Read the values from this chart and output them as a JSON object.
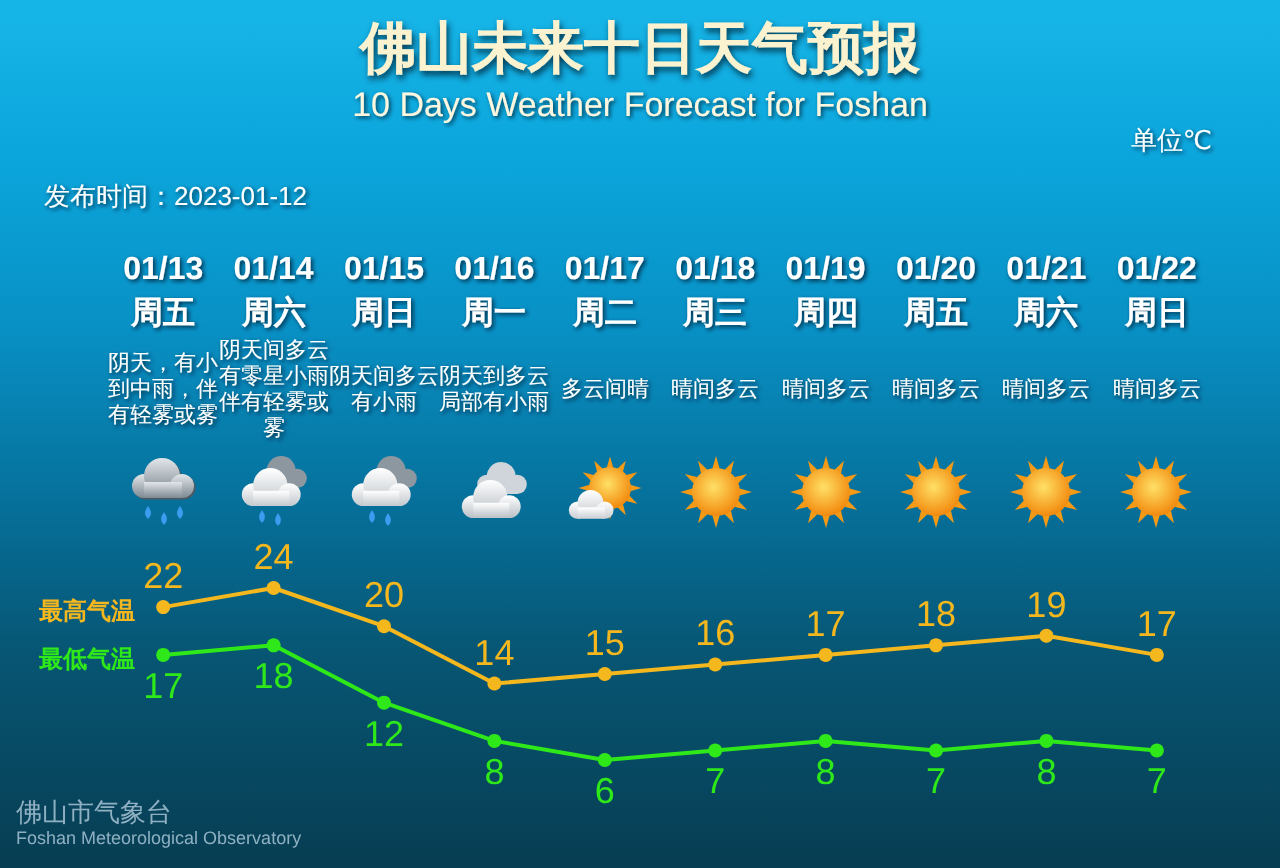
{
  "chart_data": {
    "type": "line",
    "title": "佛山未来十日天气预报",
    "subtitle": "10 Days Weather Forecast for Foshan",
    "categories": [
      "01/13\n周五",
      "01/14\n周六",
      "01/15\n周日",
      "01/16\n周一",
      "01/17\n周二",
      "01/18\n周三",
      "01/19\n周四",
      "01/20\n周五",
      "01/21\n周六",
      "01/22\n周日"
    ],
    "series": [
      {
        "name": "最高气温",
        "color": "#f5b71e",
        "values": [
          22,
          24,
          20,
          14,
          15,
          16,
          17,
          18,
          19,
          17
        ]
      },
      {
        "name": "最低气温",
        "color": "#2ee81a",
        "values": [
          17,
          18,
          12,
          8,
          6,
          7,
          8,
          7,
          8,
          7
        ]
      }
    ],
    "data_labels": true,
    "marker": "circle",
    "line_style": "solid",
    "legend": false,
    "grid": false,
    "annotations": [
      "单位℃",
      "发布时间：2023-01-12",
      "阴天，有小到中雨，伴有轻雾或雾",
      "阴天间多云有零星小雨伴有轻雾或雾",
      "阴天间多云有小雨",
      "阴天到多云局部有小雨",
      "多云间晴",
      "晴间多云",
      "晴间多云",
      "晴间多云",
      "晴间多云",
      "晴间多云",
      "佛山市气象台",
      "Foshan Meteorological Observatory"
    ]
  }
}
